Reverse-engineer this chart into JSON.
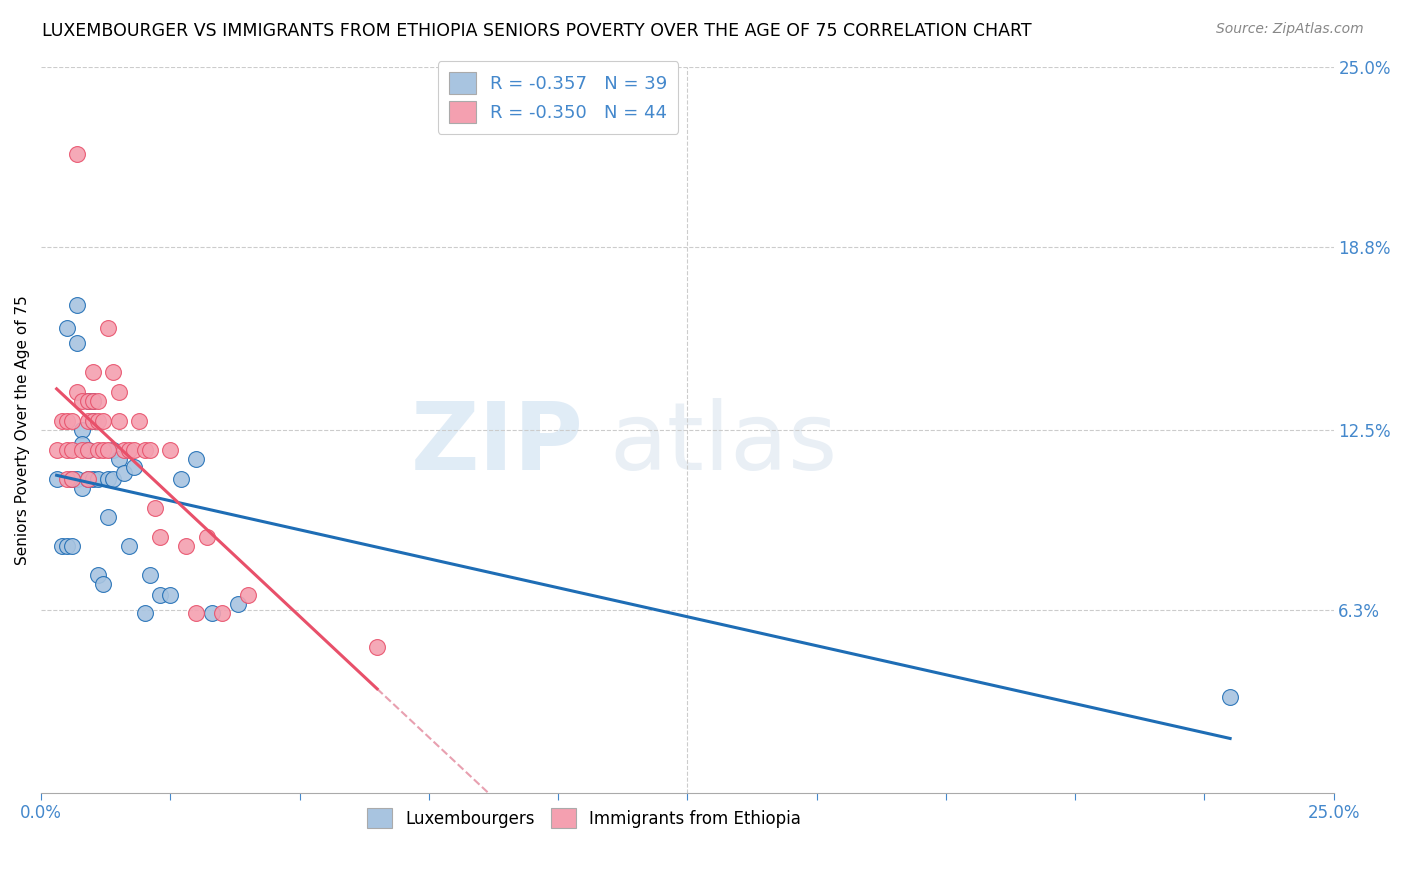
{
  "title": "LUXEMBOURGER VS IMMIGRANTS FROM ETHIOPIA SENIORS POVERTY OVER THE AGE OF 75 CORRELATION CHART",
  "source": "Source: ZipAtlas.com",
  "ylabel": "Seniors Poverty Over the Age of 75",
  "xlim": [
    0.0,
    0.25
  ],
  "ylim": [
    0.0,
    0.25
  ],
  "xtick_labels": [
    "0.0%",
    "",
    "",
    "",
    "",
    "",
    "",
    "",
    "",
    "",
    "25.0%"
  ],
  "xtick_vals": [
    0.0,
    0.025,
    0.05,
    0.075,
    0.1,
    0.125,
    0.15,
    0.175,
    0.2,
    0.225,
    0.25
  ],
  "ytick_positions": [
    0.0,
    0.063,
    0.125,
    0.188,
    0.25
  ],
  "right_ytick_labels": [
    "",
    "6.3%",
    "12.5%",
    "18.8%",
    "25.0%"
  ],
  "lux_color": "#a8c4e0",
  "eth_color": "#f4a0b0",
  "lux_line_color": "#1e6db5",
  "eth_line_color": "#e8506a",
  "dashed_line_color": "#e8a0b0",
  "axis_color": "#4488cc",
  "legend_R_lux": "-0.357",
  "legend_N_lux": "39",
  "legend_R_eth": "-0.350",
  "legend_N_eth": "44",
  "lux_x": [
    0.003,
    0.004,
    0.005,
    0.005,
    0.006,
    0.006,
    0.006,
    0.007,
    0.007,
    0.007,
    0.008,
    0.008,
    0.008,
    0.009,
    0.009,
    0.009,
    0.01,
    0.01,
    0.01,
    0.011,
    0.011,
    0.012,
    0.013,
    0.013,
    0.014,
    0.014,
    0.015,
    0.016,
    0.017,
    0.018,
    0.02,
    0.021,
    0.023,
    0.025,
    0.027,
    0.03,
    0.033,
    0.038,
    0.23
  ],
  "lux_y": [
    0.108,
    0.085,
    0.085,
    0.16,
    0.108,
    0.108,
    0.085,
    0.168,
    0.155,
    0.108,
    0.125,
    0.12,
    0.105,
    0.135,
    0.118,
    0.108,
    0.135,
    0.128,
    0.108,
    0.108,
    0.075,
    0.072,
    0.108,
    0.095,
    0.108,
    0.118,
    0.115,
    0.11,
    0.085,
    0.112,
    0.062,
    0.075,
    0.068,
    0.068,
    0.108,
    0.115,
    0.062,
    0.065,
    0.033
  ],
  "eth_x": [
    0.003,
    0.004,
    0.005,
    0.005,
    0.005,
    0.006,
    0.006,
    0.006,
    0.007,
    0.007,
    0.008,
    0.008,
    0.009,
    0.009,
    0.009,
    0.009,
    0.01,
    0.01,
    0.01,
    0.011,
    0.011,
    0.011,
    0.012,
    0.012,
    0.013,
    0.013,
    0.014,
    0.015,
    0.015,
    0.016,
    0.017,
    0.018,
    0.019,
    0.02,
    0.021,
    0.022,
    0.023,
    0.025,
    0.028,
    0.03,
    0.032,
    0.035,
    0.04,
    0.065
  ],
  "eth_y": [
    0.118,
    0.128,
    0.128,
    0.118,
    0.108,
    0.128,
    0.118,
    0.108,
    0.22,
    0.138,
    0.135,
    0.118,
    0.135,
    0.128,
    0.118,
    0.108,
    0.145,
    0.135,
    0.128,
    0.135,
    0.128,
    0.118,
    0.128,
    0.118,
    0.16,
    0.118,
    0.145,
    0.138,
    0.128,
    0.118,
    0.118,
    0.118,
    0.128,
    0.118,
    0.118,
    0.098,
    0.088,
    0.118,
    0.085,
    0.062,
    0.088,
    0.062,
    0.068,
    0.05
  ]
}
